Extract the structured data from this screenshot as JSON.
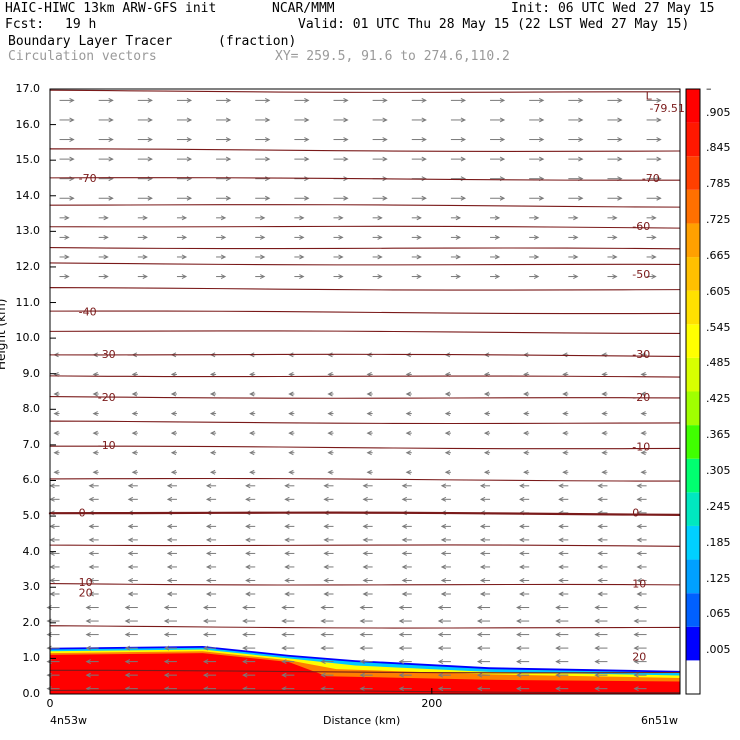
{
  "header": {
    "model": "HAIC-HIWC 13km ARW-GFS init",
    "org": "NCAR/MMM",
    "init": "Init: 06 UTC Wed 27 May 15",
    "fcst_label": "Fcst:",
    "fcst_value": "19 h",
    "valid": "Valid: 01 UTC Thu 28 May 15 (22 LST Wed 27 May 15)",
    "field": "Boundary Layer Tracer",
    "field_units": "(fraction)",
    "vectors": "Circulation vectors",
    "xy": "XY= 259.5, 91.6 to 274.6,110.2"
  },
  "chart_data": {
    "type": "cross-section",
    "ylabel": "Height (km)",
    "xlabel": "Distance (km)",
    "ylim": [
      0,
      17
    ],
    "xlim": [
      0,
      330
    ],
    "yticks": [
      "0.0",
      "1.0",
      "2.0",
      "3.0",
      "4.0",
      "5.0",
      "6.0",
      "7.0",
      "8.0",
      "9.0",
      "10.0",
      "11.0",
      "12.0",
      "13.0",
      "14.0",
      "15.0",
      "16.0",
      "17.0"
    ],
    "xticks": [
      {
        "value": 0,
        "label": "0"
      },
      {
        "value": 200,
        "label": "200"
      }
    ],
    "x_endpoints": {
      "left": "4n53w",
      "right": "6n51w"
    },
    "contour_labels": [
      {
        "x": 15,
        "y": 2.85,
        "label": "20"
      },
      {
        "x": 305,
        "y": 1.05,
        "label": "20"
      },
      {
        "x": 15,
        "y": 3.15,
        "label": "10"
      },
      {
        "x": 305,
        "y": 3.1,
        "label": "10"
      },
      {
        "x": 15,
        "y": 5.1,
        "label": "0"
      },
      {
        "x": 305,
        "y": 5.1,
        "label": "0"
      },
      {
        "x": 25,
        "y": 7.0,
        "label": "-10"
      },
      {
        "x": 305,
        "y": 6.95,
        "label": "-10"
      },
      {
        "x": 25,
        "y": 8.35,
        "label": "-20"
      },
      {
        "x": 305,
        "y": 8.35,
        "label": "-20"
      },
      {
        "x": 25,
        "y": 9.55,
        "label": "-30"
      },
      {
        "x": 305,
        "y": 9.55,
        "label": "-30"
      },
      {
        "x": 15,
        "y": 10.75,
        "label": "-40"
      },
      {
        "x": 305,
        "y": 11.8,
        "label": "-50"
      },
      {
        "x": 305,
        "y": 13.15,
        "label": "-60"
      },
      {
        "x": 15,
        "y": 14.5,
        "label": "-70"
      },
      {
        "x": 310,
        "y": 14.5,
        "label": "-70"
      }
    ],
    "min_label": {
      "marker": "L",
      "value": "-79.51"
    },
    "tracer_front_x": 125,
    "colorbar": {
      "labels": [
        ".005",
        ".065",
        ".125",
        ".185",
        ".245",
        ".305",
        ".365",
        ".425",
        ".485",
        ".545",
        ".605",
        ".665",
        ".725",
        ".785",
        ".845",
        ".905"
      ],
      "top_label": "–",
      "colors": [
        "#ffffff",
        "#0000ff",
        "#0060ff",
        "#00a0ff",
        "#00d0ff",
        "#00e8c0",
        "#00ff70",
        "#40ff00",
        "#a0ff00",
        "#d8ff00",
        "#ffff00",
        "#ffe000",
        "#ffc000",
        "#ffa000",
        "#ff7000",
        "#ff4000",
        "#ff1800",
        "#ff0000"
      ]
    }
  }
}
